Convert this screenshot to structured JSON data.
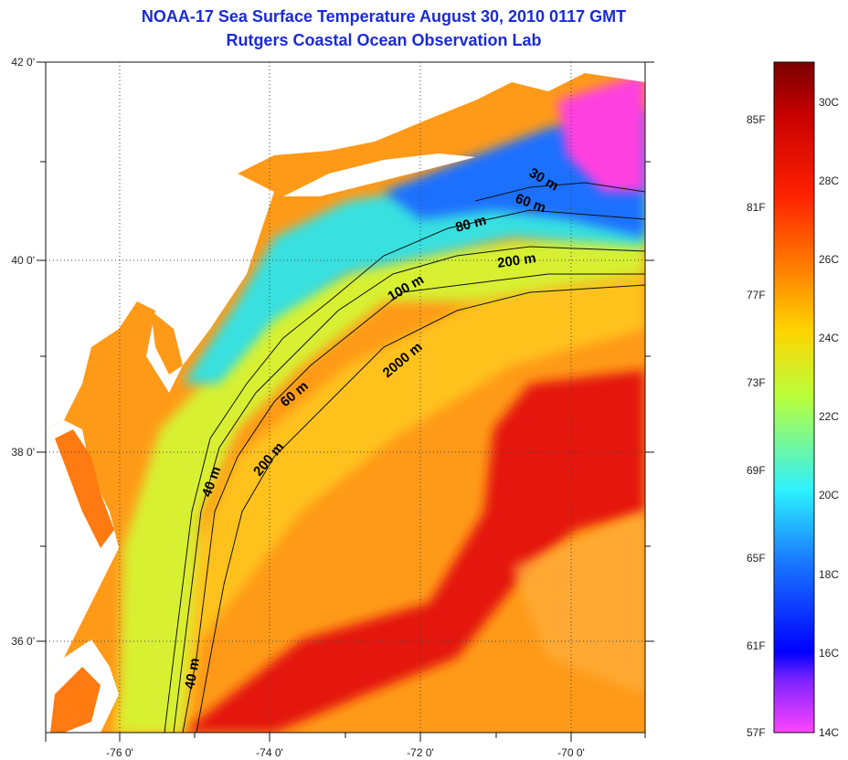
{
  "title": {
    "line1": "NOAA-17 Sea Surface Temperature August 30, 2010 0117 GMT",
    "line2": "Rutgers Coastal Ocean Observation Lab"
  },
  "axes": {
    "x_ticks": [
      "-76 0'",
      "-74 0'",
      "-72 0'",
      "-70 0'"
    ],
    "y_ticks": [
      "42 0'",
      "40 0'",
      "38 0'",
      "36 0'"
    ]
  },
  "contour_labels": [
    "30 m",
    "60 m",
    "80 m",
    "200 m",
    "100 m",
    "2000 m",
    "60 m",
    "200 m",
    "40 m",
    "40 m"
  ],
  "colorbar": {
    "fahrenheit": [
      "85F",
      "81F",
      "77F",
      "73F",
      "69F",
      "65F",
      "61F",
      "57F"
    ],
    "celsius": [
      "30C",
      "28C",
      "26C",
      "24C",
      "22C",
      "20C",
      "18C",
      "16C",
      "14C"
    ],
    "colors": [
      "#7a0000",
      "#c80000",
      "#ff2200",
      "#ff7a00",
      "#ffd400",
      "#b8ff3c",
      "#2cf0ff",
      "#1a7dff",
      "#0000ff",
      "#7a22ff",
      "#ff44ff"
    ]
  },
  "sst_colors": {
    "land": "#ffffff",
    "warm_core": "#e4140c",
    "open_ocean": "#ff9a18",
    "slope": "#ffc21c",
    "shelf": "#d8f030",
    "cool_shelf": "#38e0e0",
    "cold_north": "#1a70ff",
    "coldest": "#ff40e0",
    "bays": "#ff7a10"
  }
}
